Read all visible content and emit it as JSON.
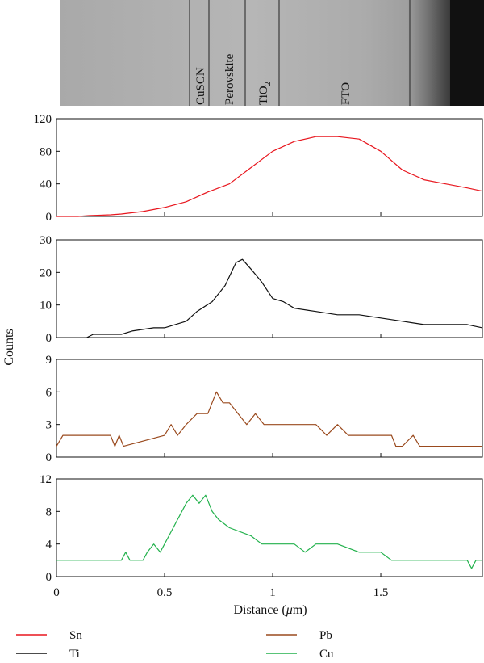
{
  "image_strip": {
    "layers": [
      {
        "name": "CuSCN"
      },
      {
        "name": "Perovskite"
      },
      {
        "name": "TiO",
        "subscript": "2"
      },
      {
        "name": "FTO"
      }
    ]
  },
  "chart_data": {
    "type": "line",
    "xlabel": "Distance (",
    "xlabel_unit": "μ",
    "xlabel_suffix": "m)",
    "ylabel": "Counts",
    "xlim": [
      0,
      1.97
    ],
    "xticks": [
      "0",
      "0.5",
      "1",
      "1.5"
    ],
    "xtick_values": [
      0,
      0.5,
      1,
      1.5
    ],
    "panels": [
      {
        "series": "Sn",
        "color": "#e8161e",
        "ylim": [
          0,
          120
        ],
        "yticks": [
          "0",
          "40",
          "80",
          "120"
        ],
        "ytick_values": [
          0,
          40,
          80,
          120
        ],
        "x": [
          0,
          0.1,
          0.15,
          0.25,
          0.3,
          0.4,
          0.5,
          0.6,
          0.7,
          0.8,
          0.9,
          1.0,
          1.1,
          1.2,
          1.3,
          1.4,
          1.5,
          1.6,
          1.7,
          1.8,
          1.9,
          1.97
        ],
        "y": [
          0,
          0,
          1,
          2,
          3,
          6,
          11,
          18,
          30,
          40,
          60,
          80,
          92,
          98,
          98,
          95,
          80,
          57,
          45,
          40,
          35,
          31
        ]
      },
      {
        "series": "Ti",
        "color": "#111111",
        "ylim": [
          0,
          30
        ],
        "yticks": [
          "0",
          "10",
          "20",
          "30"
        ],
        "ytick_values": [
          0,
          10,
          20,
          30
        ],
        "x": [
          0.14,
          0.17,
          0.3,
          0.35,
          0.45,
          0.5,
          0.6,
          0.65,
          0.72,
          0.78,
          0.83,
          0.86,
          0.9,
          0.95,
          1.0,
          1.05,
          1.1,
          1.2,
          1.3,
          1.4,
          1.5,
          1.6,
          1.7,
          1.8,
          1.9,
          1.97
        ],
        "y": [
          0,
          1,
          1,
          2,
          3,
          3,
          5,
          8,
          11,
          16,
          23,
          24,
          21,
          17,
          12,
          11,
          9,
          8,
          7,
          7,
          6,
          5,
          4,
          4,
          4,
          3
        ]
      },
      {
        "series": "Pb",
        "color": "#9a4a1e",
        "ylim": [
          0,
          9
        ],
        "yticks": [
          "0",
          "3",
          "6",
          "9"
        ],
        "ytick_values": [
          0,
          3,
          6,
          9
        ],
        "x": [
          0,
          0.03,
          0.25,
          0.27,
          0.29,
          0.31,
          0.5,
          0.53,
          0.56,
          0.6,
          0.65,
          0.7,
          0.74,
          0.77,
          0.8,
          0.84,
          0.88,
          0.92,
          0.96,
          1.0,
          1.1,
          1.2,
          1.25,
          1.3,
          1.35,
          1.4,
          1.55,
          1.57,
          1.6,
          1.65,
          1.68,
          1.7,
          1.97
        ],
        "y": [
          1,
          2,
          2,
          1,
          2,
          1,
          2,
          3,
          2,
          3,
          4,
          4,
          6,
          5,
          5,
          4,
          3,
          4,
          3,
          3,
          3,
          3,
          2,
          3,
          2,
          2,
          2,
          1,
          1,
          2,
          1,
          1,
          1
        ]
      },
      {
        "series": "Cu",
        "color": "#22b14c",
        "ylim": [
          0,
          12
        ],
        "yticks": [
          "0",
          "4",
          "8",
          "12"
        ],
        "ytick_values": [
          0,
          4,
          8,
          12
        ],
        "x": [
          0,
          0.3,
          0.32,
          0.34,
          0.4,
          0.42,
          0.45,
          0.48,
          0.52,
          0.56,
          0.6,
          0.63,
          0.66,
          0.69,
          0.72,
          0.75,
          0.8,
          0.9,
          0.95,
          1.0,
          1.1,
          1.15,
          1.2,
          1.3,
          1.4,
          1.5,
          1.55,
          1.6,
          1.7,
          1.8,
          1.9,
          1.92,
          1.94,
          1.97
        ],
        "y": [
          2,
          2,
          3,
          2,
          2,
          3,
          4,
          3,
          5,
          7,
          9,
          10,
          9,
          10,
          8,
          7,
          6,
          5,
          4,
          4,
          4,
          3,
          4,
          4,
          3,
          3,
          2,
          2,
          2,
          2,
          2,
          1,
          2,
          2
        ]
      }
    ]
  },
  "legend": {
    "items": [
      {
        "label": "Sn",
        "color": "#e8161e"
      },
      {
        "label": "Ti",
        "color": "#111111"
      },
      {
        "label": "Pb",
        "color": "#9a4a1e"
      },
      {
        "label": "Cu",
        "color": "#22b14c"
      }
    ]
  }
}
